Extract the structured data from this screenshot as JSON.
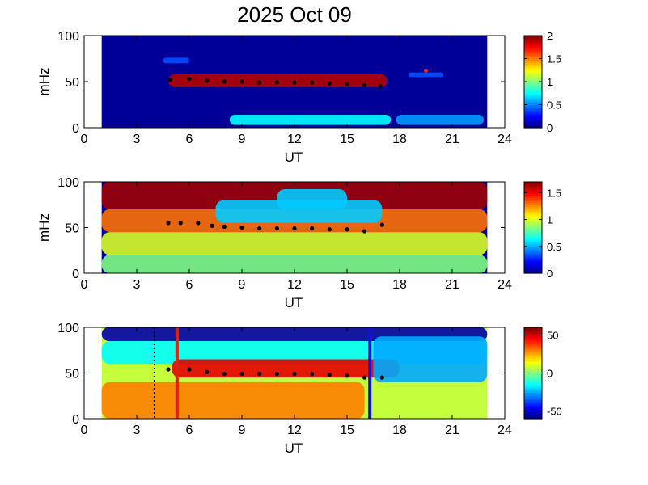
{
  "figure": {
    "title": "2025 Oct 09"
  },
  "chart_data": [
    {
      "type": "heatmap",
      "xlabel": "UT",
      "ylabel": "mHz",
      "xlim": [
        0,
        24
      ],
      "ylim": [
        0,
        100
      ],
      "xticks": [
        "0",
        "3",
        "6",
        "9",
        "12",
        "15",
        "18",
        "21",
        "24"
      ],
      "yticks": [
        "0",
        "50",
        "100"
      ],
      "data_extent_ut": [
        1,
        23
      ],
      "colormap": "jet",
      "colorbar": {
        "min": 0,
        "max": 2,
        "ticks": [
          "0",
          "0.5",
          "1",
          "1.5",
          "2"
        ]
      },
      "background_value": 0.05,
      "features": [
        {
          "ut": [
            4.8,
            17.3
          ],
          "mhz": [
            44,
            58
          ],
          "value": 1.9
        },
        {
          "ut": [
            8.3,
            17.5
          ],
          "mhz": [
            3,
            14
          ],
          "value": 0.75
        },
        {
          "ut": [
            17.8,
            22.8
          ],
          "mhz": [
            3,
            14
          ],
          "value": 0.55
        },
        {
          "ut": [
            4.5,
            6.0
          ],
          "mhz": [
            70,
            76
          ],
          "value": 0.4
        },
        {
          "ut": [
            18.5,
            20.5
          ],
          "mhz": [
            55,
            60
          ],
          "value": 0.4
        }
      ],
      "markers": [
        {
          "ut": 19.5,
          "mhz": 62,
          "color": "#ff2020"
        }
      ],
      "trace": [
        [
          4.9,
          52
        ],
        [
          6,
          53
        ],
        [
          7,
          51
        ],
        [
          8,
          50
        ],
        [
          9,
          50
        ],
        [
          10,
          49
        ],
        [
          11,
          49
        ],
        [
          12,
          49
        ],
        [
          13,
          49
        ],
        [
          14,
          48
        ],
        [
          15,
          47
        ],
        [
          16,
          46
        ],
        [
          16.9,
          45
        ]
      ]
    },
    {
      "type": "heatmap",
      "xlabel": "UT",
      "ylabel": "mHz",
      "xlim": [
        0,
        24
      ],
      "ylim": [
        0,
        100
      ],
      "xticks": [
        "0",
        "3",
        "6",
        "9",
        "12",
        "15",
        "18",
        "21",
        "24"
      ],
      "yticks": [
        "0",
        "50",
        "100"
      ],
      "data_extent_ut": [
        1,
        23
      ],
      "colormap": "jet",
      "colorbar": {
        "min": 0,
        "max": 1.7,
        "ticks": [
          "0",
          "0.5",
          "1",
          "1.5"
        ]
      },
      "background_value": 0.05,
      "features": [
        {
          "ut": [
            1,
            23
          ],
          "mhz": [
            70,
            100
          ],
          "value": 1.65
        },
        {
          "ut": [
            1,
            23
          ],
          "mhz": [
            0,
            20
          ],
          "value": 0.85
        },
        {
          "ut": [
            1,
            23
          ],
          "mhz": [
            20,
            45
          ],
          "value": 1.0
        },
        {
          "ut": [
            1,
            23
          ],
          "mhz": [
            45,
            70
          ],
          "value": 1.3
        },
        {
          "ut": [
            7.5,
            17
          ],
          "mhz": [
            55,
            80
          ],
          "value": 0.55
        },
        {
          "ut": [
            11,
            15
          ],
          "mhz": [
            70,
            92
          ],
          "value": 0.55
        }
      ],
      "markers": [],
      "trace": [
        [
          4.8,
          55
        ],
        [
          5.5,
          55
        ],
        [
          6.5,
          55
        ],
        [
          7.3,
          52
        ],
        [
          8,
          51
        ],
        [
          9,
          50
        ],
        [
          10,
          49
        ],
        [
          11,
          49
        ],
        [
          12,
          49
        ],
        [
          13,
          49
        ],
        [
          14,
          48
        ],
        [
          15,
          48
        ],
        [
          16,
          46
        ],
        [
          17,
          53
        ]
      ]
    },
    {
      "type": "heatmap",
      "xlabel": "UT",
      "ylabel": "",
      "xlim": [
        0,
        24
      ],
      "ylim": [
        0,
        100
      ],
      "xticks": [
        "0",
        "3",
        "6",
        "9",
        "12",
        "15",
        "18",
        "21",
        "24"
      ],
      "yticks": [
        "0",
        "50",
        "100"
      ],
      "data_extent_ut": [
        1,
        23
      ],
      "colormap": "jet",
      "colorbar": {
        "min": -60,
        "max": 60,
        "ticks": [
          "-50",
          "0",
          "50"
        ]
      },
      "background_value": 8,
      "features": [
        {
          "ut": [
            1,
            23
          ],
          "mhz": [
            85,
            100
          ],
          "value": -55
        },
        {
          "ut": [
            1,
            23
          ],
          "mhz": [
            60,
            85
          ],
          "value": -15
        },
        {
          "ut": [
            5,
            18
          ],
          "mhz": [
            45,
            65
          ],
          "value": 48
        },
        {
          "ut": [
            16.5,
            23
          ],
          "mhz": [
            40,
            90
          ],
          "value": -25
        },
        {
          "ut": [
            1,
            16
          ],
          "mhz": [
            0,
            40
          ],
          "value": 30
        }
      ],
      "markers": [],
      "vlines": [
        {
          "ut": 4.0,
          "color": "#000000",
          "style": "dotted"
        },
        {
          "ut": 5.3,
          "color": "#e02010",
          "style": "solid"
        },
        {
          "ut": 16.3,
          "color": "#1010e0",
          "style": "solid"
        }
      ],
      "trace": [
        [
          4.8,
          54
        ],
        [
          6,
          54
        ],
        [
          7,
          51
        ],
        [
          8,
          49
        ],
        [
          9,
          49
        ],
        [
          10,
          49
        ],
        [
          11,
          49
        ],
        [
          12,
          49
        ],
        [
          13,
          49
        ],
        [
          14,
          48
        ],
        [
          15,
          47
        ],
        [
          16,
          45
        ],
        [
          17,
          45
        ]
      ]
    }
  ]
}
